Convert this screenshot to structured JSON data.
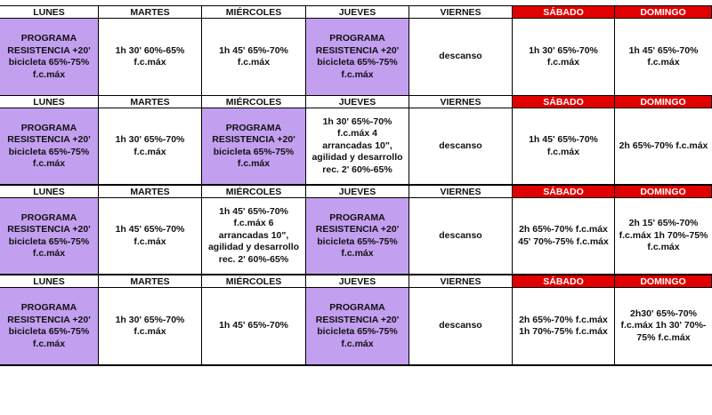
{
  "days": [
    "LUNES",
    "MARTES",
    "MIÉRCOLES",
    "JUEVES",
    "VIERNES",
    "SÁBADO",
    "DOMINGO"
  ],
  "weeks": [
    {
      "cells": [
        "PROGRAMA\nRESISTENCIA +20'\nbicicleta 65%-75%\nf.c.máx",
        "1h 30' 60%-65%\nf.c.máx",
        "1h 45' 65%-70%\nf.c.máx",
        "PROGRAMA\nRESISTENCIA +20'\nbicicleta 65%-75%\nf.c.máx",
        "descanso",
        "1h 30' 65%-70%\nf.c.máx",
        "1h 45' 65%-70%\nf.c.máx"
      ]
    },
    {
      "cells": [
        "PROGRAMA\nRESISTENCIA +20'\nbicicleta 65%-75%\nf.c.máx",
        "1h 30' 65%-70%\nf.c.máx",
        "PROGRAMA\nRESISTENCIA +20'\nbicicleta 65%-75%\nf.c.máx",
        "1h 30' 65%-70%\nf.c.máx    4\narrancadas 10\",\nagilidad y desarrollo\nrec. 2' 60%-65%",
        "descanso",
        "1h 45' 65%-70%\nf.c.máx",
        "2h 65%-70% f.c.máx"
      ]
    },
    {
      "cells": [
        "PROGRAMA\nRESISTENCIA +20'\nbicicleta 65%-75%\nf.c.máx",
        "1h 45' 65%-70%\nf.c.máx",
        "1h 45' 65%-70%\nf.c.máx    6\narrancadas 10\",\nagilidad y desarrollo\nrec. 2' 60%-65%",
        "PROGRAMA\nRESISTENCIA +20'\nbicicleta 65%-75%\nf.c.máx",
        "descanso",
        "2h 65%-70% f.c.máx\n45' 70%-75% f.c.máx",
        "2h 15' 65%-70%\nf.c.máx 1h 70%-75%\nf.c.máx"
      ]
    },
    {
      "cells": [
        "PROGRAMA\nRESISTENCIA +20'\nbicicleta 65%-75%\nf.c.máx",
        "1h 30' 65%-70%\nf.c.máx",
        "1h 45' 65%-70%",
        "PROGRAMA\nRESISTENCIA +20'\nbicicleta 65%-75%\nf.c.máx",
        "descanso",
        "2h  65%-70% f.c.máx\n1h 70%-75% f.c.máx",
        "2h30' 65%-70%\nf.c.máx 1h 30' 70%-\n75% f.c.máx"
      ]
    }
  ],
  "colors": {
    "program_cell": "#c39ff0",
    "weekend_header": "#e00000"
  }
}
